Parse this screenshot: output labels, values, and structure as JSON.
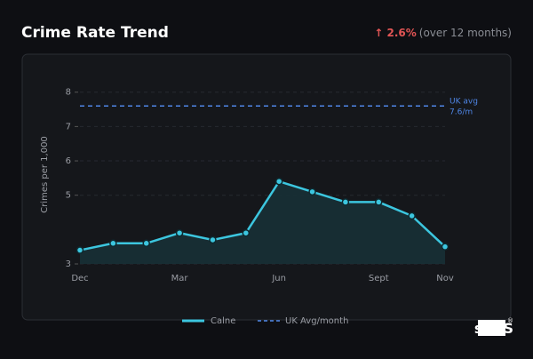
{
  "header": {
    "change": "↑ 2.6%",
    "change_note": "(over 12 months)",
    "logo": "scOS"
  },
  "chart_data": {
    "type": "line",
    "title": "Crime Rate Trend",
    "y_label": "Crimes per 1,000",
    "categories": [
      "Dec",
      null,
      null,
      "Mar",
      null,
      null,
      "Jun",
      null,
      null,
      "Sept",
      null,
      "Nov"
    ],
    "series": [
      {
        "name": "Calne",
        "color": "#3cc6df",
        "values": [
          3.4,
          3.6,
          3.6,
          3.9,
          3.7,
          3.9,
          5.4,
          5.1,
          4.8,
          4.8,
          4.4,
          3.5
        ]
      }
    ],
    "reference": {
      "name": "UK Avg/month",
      "color": "#4f86e6",
      "value": 7.6,
      "label": "UK avg",
      "value_label": "7.6/m"
    },
    "ylim": [
      3,
      8.2
    ],
    "yticks": [
      3,
      5,
      6,
      7,
      8
    ],
    "grid": true,
    "legend": "bottom"
  }
}
